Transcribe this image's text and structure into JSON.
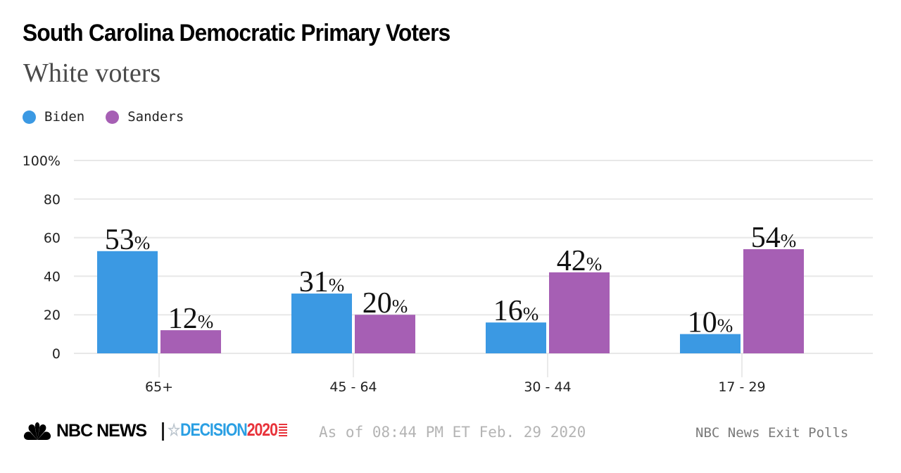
{
  "header": {
    "title": "South Carolina Democratic Primary Voters",
    "subtitle": "White voters"
  },
  "legend": [
    {
      "label": "Biden",
      "color": "#3b99e3"
    },
    {
      "label": "Sanders",
      "color": "#a65fb4"
    }
  ],
  "chart_data": {
    "type": "bar",
    "title": "South Carolina Democratic Primary Voters",
    "subtitle": "White voters",
    "xlabel": "",
    "ylabel": "",
    "categories": [
      "65+",
      "45-64",
      "30-44",
      "17-29"
    ],
    "series": [
      {
        "name": "Biden",
        "color": "#3b99e3",
        "values": [
          53,
          31,
          16,
          10
        ]
      },
      {
        "name": "Sanders",
        "color": "#a65fb4",
        "values": [
          12,
          20,
          42,
          54
        ]
      }
    ],
    "ylim": [
      0,
      100
    ],
    "yticks": [
      0,
      20,
      40,
      60,
      80,
      100
    ],
    "ytick_labels": [
      "0",
      "20",
      "40",
      "60",
      "80",
      "100%"
    ],
    "grid": true,
    "legend_position": "top-left",
    "value_suffix": "%"
  },
  "footer": {
    "brand": "NBC NEWS",
    "decision_word": "DECISION",
    "decision_year": "2020",
    "timestamp": "As of 08:44 PM ET Feb. 29 2020",
    "source": "NBC News Exit Polls",
    "brand_colors": {
      "blue": "#2a9fe3",
      "red": "#e8333b"
    }
  }
}
